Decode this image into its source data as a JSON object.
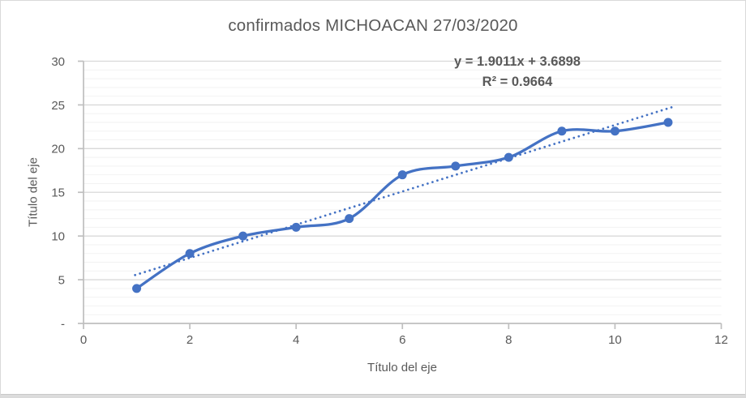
{
  "window": {
    "background": "#ffffff",
    "border_color": "#d9d9d9"
  },
  "chart": {
    "title": "confirmados MICHOACAN 27/03/2020",
    "equation": "y = 1.9011x + 3.6898",
    "r_squared_label": "R² = 0.9664",
    "x_axis_title": "Título del eje",
    "y_axis_title": "Título del eje"
  },
  "chart_data": {
    "type": "line",
    "title": "confirmados MICHOACAN 27/03/2020",
    "x": [
      1,
      2,
      3,
      4,
      5,
      6,
      7,
      8,
      9,
      10,
      11
    ],
    "series": [
      {
        "name": "confirmados",
        "values": [
          4,
          8,
          10,
          11,
          12,
          17,
          18,
          19,
          22,
          22,
          23
        ]
      }
    ],
    "trendline": {
      "type": "linear",
      "slope": 1.9011,
      "intercept": 3.6898,
      "r_squared": 0.9664,
      "label": "y = 1.9011x + 3.6898",
      "r2_label": "R² = 0.9664",
      "style": "dotted"
    },
    "xlabel": "Título del eje",
    "ylabel": "Título del eje",
    "xlim": [
      0,
      12
    ],
    "ylim": [
      0,
      30
    ],
    "x_ticks": [
      0,
      2,
      4,
      6,
      8,
      10,
      12
    ],
    "y_ticks": [
      0,
      5,
      10,
      15,
      20,
      25,
      30
    ],
    "y_tick_labels": [
      "-",
      "5",
      "10",
      "15",
      "20",
      "25",
      "30"
    ],
    "y_minor_unit": 1,
    "grid": {
      "horizontal_major": true,
      "horizontal_minor": true,
      "vertical": false
    },
    "legend": "none",
    "line_smooth": true,
    "marker": "circle",
    "colors": {
      "series": "#4472c4",
      "trendline": "#4472c4",
      "gridline_major": "#d9d9d9",
      "gridline_minor": "#f2f2f2",
      "axis_line": "#bfbfbf",
      "text": "#595959"
    }
  }
}
